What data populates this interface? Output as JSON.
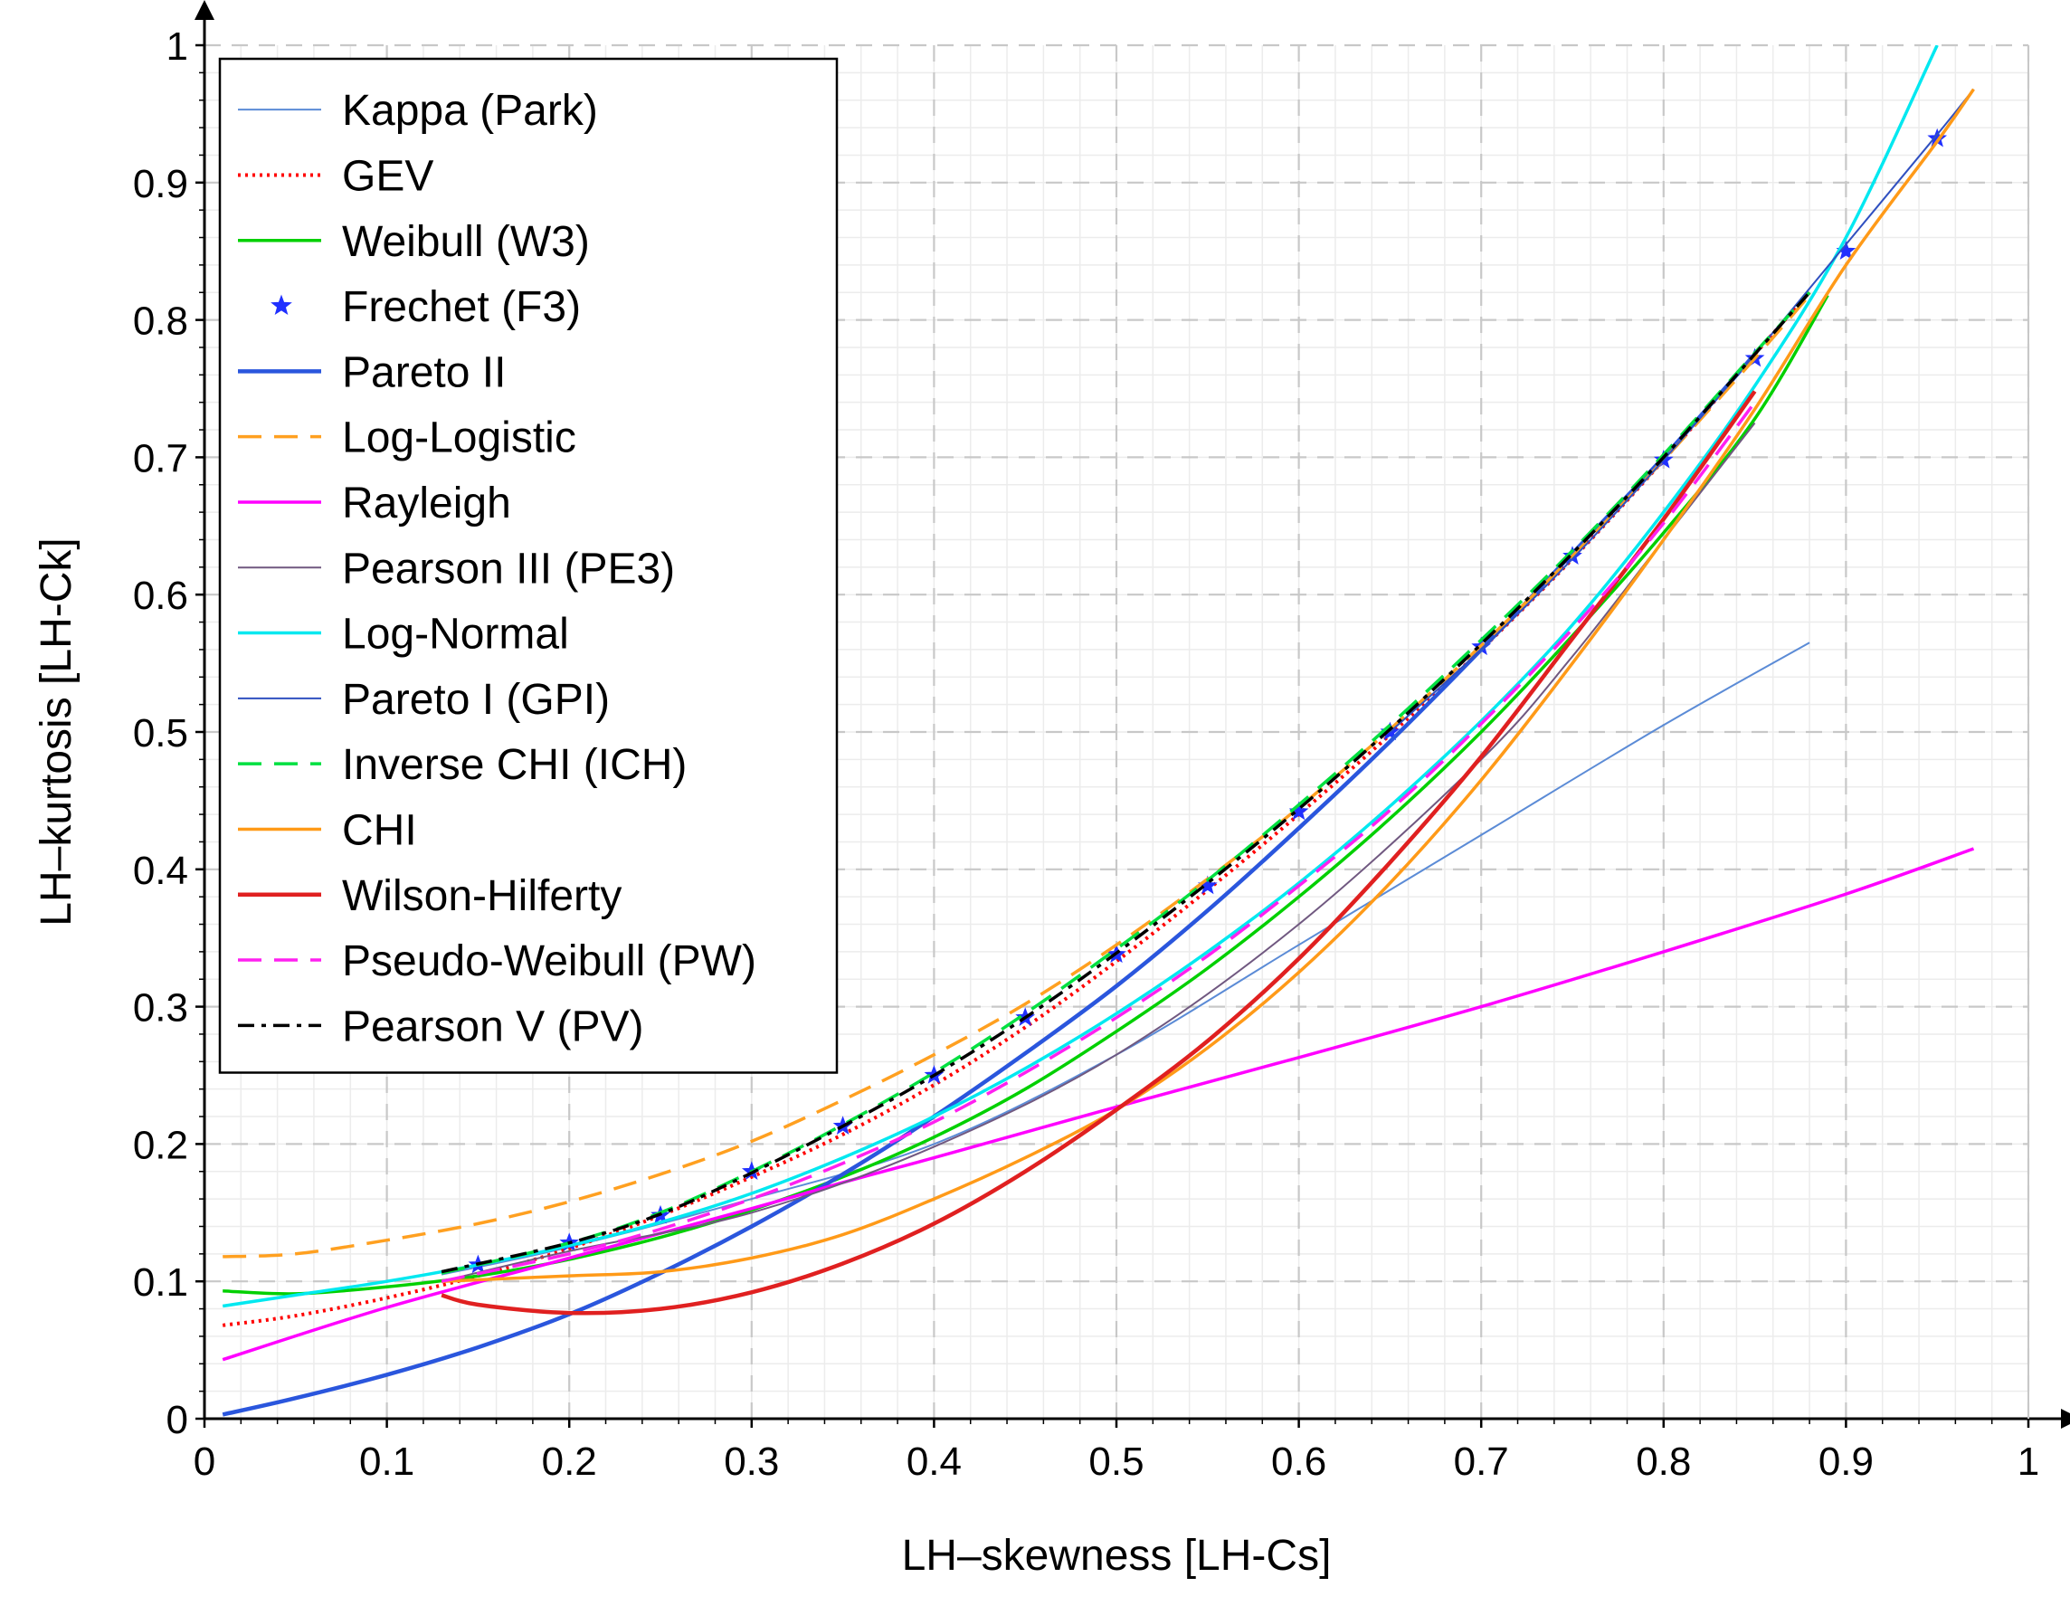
{
  "chart_data": {
    "type": "line",
    "title": "",
    "xlabel": "LH–skewness [LH-Cs]",
    "ylabel": "LH–kurtosis [LH-Ck]",
    "xlim": [
      0,
      1
    ],
    "ylim": [
      0,
      1
    ],
    "xticks": [
      0,
      0.1,
      0.2,
      0.3,
      0.4,
      0.5,
      0.6,
      0.7,
      0.8,
      0.9,
      1
    ],
    "xtick_labels": [
      "0",
      "0.1",
      "0.2",
      "0.3",
      "0.4",
      "0.5",
      "0.6",
      "0.7",
      "0.8",
      "0.9",
      "1"
    ],
    "yticks": [
      0,
      0.1,
      0.2,
      0.3,
      0.4,
      0.5,
      0.6,
      0.7,
      0.8,
      0.9,
      1
    ],
    "ytick_labels": [
      "0",
      "0.1",
      "0.2",
      "0.3",
      "0.4",
      "0.5",
      "0.6",
      "0.7",
      "0.8",
      "0.9",
      "1"
    ],
    "minor_grid_step": 0.02,
    "grid": true,
    "legend_position": "top-left",
    "series": [
      {
        "name": "Kappa (Park)",
        "color": "#5b8bd6",
        "style": "solid",
        "weight": "thin",
        "x": [
          0.13,
          0.2,
          0.3,
          0.4,
          0.5,
          0.6,
          0.7,
          0.8,
          0.88
        ],
        "y": [
          0.105,
          0.125,
          0.16,
          0.2,
          0.265,
          0.345,
          0.425,
          0.505,
          0.565
        ]
      },
      {
        "name": "GEV",
        "color": "#ff0000",
        "style": "dotted",
        "weight": "normal",
        "x": [
          0.01,
          0.05,
          0.1,
          0.15,
          0.2,
          0.25,
          0.3,
          0.35,
          0.4,
          0.45,
          0.5,
          0.55,
          0.6,
          0.65,
          0.7,
          0.75,
          0.8,
          0.85,
          0.88
        ],
        "y": [
          0.068,
          0.075,
          0.088,
          0.104,
          0.124,
          0.148,
          0.176,
          0.207,
          0.243,
          0.285,
          0.333,
          0.385,
          0.44,
          0.498,
          0.56,
          0.626,
          0.698,
          0.775,
          0.82
        ]
      },
      {
        "name": "Weibull (W3)",
        "color": "#00d000",
        "style": "solid",
        "weight": "normal",
        "x": [
          0.01,
          0.05,
          0.1,
          0.15,
          0.2,
          0.25,
          0.3,
          0.35,
          0.4,
          0.45,
          0.5,
          0.55,
          0.6,
          0.65,
          0.7,
          0.75,
          0.8,
          0.85,
          0.89
        ],
        "y": [
          0.093,
          0.091,
          0.096,
          0.104,
          0.116,
          0.132,
          0.152,
          0.176,
          0.205,
          0.24,
          0.282,
          0.328,
          0.38,
          0.437,
          0.5,
          0.57,
          0.645,
          0.728,
          0.818
        ]
      },
      {
        "name": "Frechet (F3)",
        "color": "#2030ff",
        "style": "markers",
        "weight": "normal",
        "x": [
          0.15,
          0.2,
          0.25,
          0.3,
          0.35,
          0.4,
          0.45,
          0.5,
          0.55,
          0.6,
          0.65,
          0.7,
          0.75,
          0.8,
          0.85,
          0.9,
          0.95
        ],
        "y": [
          0.112,
          0.128,
          0.148,
          0.18,
          0.213,
          0.25,
          0.292,
          0.338,
          0.388,
          0.442,
          0.5,
          0.562,
          0.628,
          0.698,
          0.772,
          0.85,
          0.932
        ]
      },
      {
        "name": "Pareto II",
        "color": "#2a56dd",
        "style": "solid",
        "weight": "thick",
        "x": [
          0.01,
          0.05,
          0.1,
          0.15,
          0.2,
          0.25,
          0.3,
          0.35,
          0.4,
          0.45,
          0.5,
          0.55,
          0.6,
          0.65,
          0.7,
          0.75,
          0.8,
          0.85
        ],
        "y": [
          0.003,
          0.015,
          0.032,
          0.052,
          0.076,
          0.106,
          0.14,
          0.178,
          0.22,
          0.266,
          0.315,
          0.37,
          0.43,
          0.493,
          0.56,
          0.63,
          0.7,
          0.775
        ]
      },
      {
        "name": "Log-Logistic",
        "color": "#ffa020",
        "style": "dashed",
        "weight": "normal",
        "x": [
          0.01,
          0.05,
          0.1,
          0.15,
          0.2,
          0.25,
          0.3,
          0.35,
          0.4,
          0.45,
          0.5,
          0.55,
          0.6,
          0.65,
          0.7,
          0.75,
          0.8,
          0.85,
          0.88
        ],
        "y": [
          0.118,
          0.12,
          0.13,
          0.142,
          0.158,
          0.178,
          0.202,
          0.232,
          0.265,
          0.302,
          0.345,
          0.393,
          0.445,
          0.502,
          0.563,
          0.628,
          0.698,
          0.772,
          0.818
        ]
      },
      {
        "name": "Rayleigh",
        "color": "#ff00ff",
        "style": "solid",
        "weight": "normal",
        "x": [
          0.01,
          0.1,
          0.2,
          0.3,
          0.35,
          0.4,
          0.5,
          0.6,
          0.7,
          0.8,
          0.9,
          0.97
        ],
        "y": [
          0.043,
          0.081,
          0.117,
          0.153,
          0.172,
          0.19,
          0.227,
          0.263,
          0.3,
          0.34,
          0.382,
          0.415
        ]
      },
      {
        "name": "Pearson III (PE3)",
        "color": "#705880",
        "style": "solid",
        "weight": "thin",
        "x": [
          0.13,
          0.2,
          0.3,
          0.4,
          0.5,
          0.6,
          0.7,
          0.75,
          0.8,
          0.85
        ],
        "y": [
          0.1,
          0.122,
          0.15,
          0.198,
          0.265,
          0.36,
          0.48,
          0.555,
          0.64,
          0.725
        ]
      },
      {
        "name": "Log-Normal",
        "color": "#00e8f0",
        "style": "solid",
        "weight": "normal",
        "x": [
          0.01,
          0.05,
          0.1,
          0.15,
          0.2,
          0.25,
          0.3,
          0.35,
          0.4,
          0.45,
          0.5,
          0.55,
          0.6,
          0.65,
          0.7,
          0.75,
          0.8,
          0.85,
          0.9,
          0.95
        ],
        "y": [
          0.082,
          0.09,
          0.1,
          0.112,
          0.126,
          0.143,
          0.164,
          0.19,
          0.22,
          0.255,
          0.295,
          0.34,
          0.39,
          0.446,
          0.508,
          0.578,
          0.66,
          0.752,
          0.86,
          1.0
        ]
      },
      {
        "name": "Pareto I (GPI)",
        "color": "#3050c0",
        "style": "solid",
        "weight": "thin",
        "x": [
          0.65,
          0.7,
          0.75,
          0.8,
          0.85,
          0.9,
          0.95,
          0.97
        ],
        "y": [
          0.5,
          0.56,
          0.626,
          0.698,
          0.775,
          0.855,
          0.935,
          0.968
        ]
      },
      {
        "name": "Inverse CHI (ICH)",
        "color": "#00e040",
        "style": "dashed",
        "weight": "normal",
        "x": [
          0.13,
          0.2,
          0.25,
          0.3,
          0.35,
          0.4,
          0.45,
          0.5,
          0.55,
          0.6,
          0.65,
          0.7,
          0.75,
          0.8,
          0.85,
          0.88
        ],
        "y": [
          0.106,
          0.128,
          0.15,
          0.18,
          0.214,
          0.252,
          0.295,
          0.342,
          0.392,
          0.447,
          0.505,
          0.567,
          0.632,
          0.702,
          0.776,
          0.82
        ]
      },
      {
        "name": "CHI",
        "color": "#ff9a18",
        "style": "solid",
        "weight": "normal",
        "x": [
          0.13,
          0.2,
          0.25,
          0.3,
          0.35,
          0.4,
          0.45,
          0.5,
          0.55,
          0.6,
          0.65,
          0.7,
          0.75,
          0.8,
          0.85,
          0.9,
          0.95,
          0.97
        ],
        "y": [
          0.1,
          0.104,
          0.107,
          0.117,
          0.134,
          0.16,
          0.19,
          0.225,
          0.27,
          0.325,
          0.39,
          0.465,
          0.55,
          0.64,
          0.735,
          0.84,
          0.93,
          0.968
        ]
      },
      {
        "name": "Wilson-Hilferty",
        "color": "#e02020",
        "style": "solid",
        "weight": "thick",
        "x": [
          0.13,
          0.15,
          0.2,
          0.25,
          0.3,
          0.35,
          0.4,
          0.45,
          0.5,
          0.55,
          0.6,
          0.65,
          0.7,
          0.75,
          0.8,
          0.85
        ],
        "y": [
          0.09,
          0.083,
          0.077,
          0.08,
          0.092,
          0.113,
          0.142,
          0.18,
          0.225,
          0.275,
          0.335,
          0.405,
          0.482,
          0.568,
          0.655,
          0.748
        ]
      },
      {
        "name": "Pseudo-Weibull (PW)",
        "color": "#ff20f0",
        "style": "dashed",
        "weight": "normal",
        "x": [
          0.13,
          0.2,
          0.25,
          0.3,
          0.35,
          0.4,
          0.45,
          0.5,
          0.55,
          0.6,
          0.65,
          0.7,
          0.75,
          0.8,
          0.85
        ],
        "y": [
          0.1,
          0.12,
          0.138,
          0.16,
          0.186,
          0.216,
          0.252,
          0.292,
          0.337,
          0.388,
          0.443,
          0.506,
          0.575,
          0.652,
          0.74
        ]
      },
      {
        "name": "Pearson V (PV)",
        "color": "#000000",
        "style": "dashdot",
        "weight": "normal",
        "x": [
          0.13,
          0.2,
          0.25,
          0.3,
          0.35,
          0.4,
          0.45,
          0.5,
          0.55,
          0.6,
          0.65,
          0.7,
          0.75,
          0.8,
          0.85,
          0.88
        ],
        "y": [
          0.107,
          0.128,
          0.149,
          0.179,
          0.213,
          0.25,
          0.292,
          0.339,
          0.39,
          0.444,
          0.502,
          0.564,
          0.63,
          0.7,
          0.775,
          0.82
        ]
      }
    ]
  }
}
